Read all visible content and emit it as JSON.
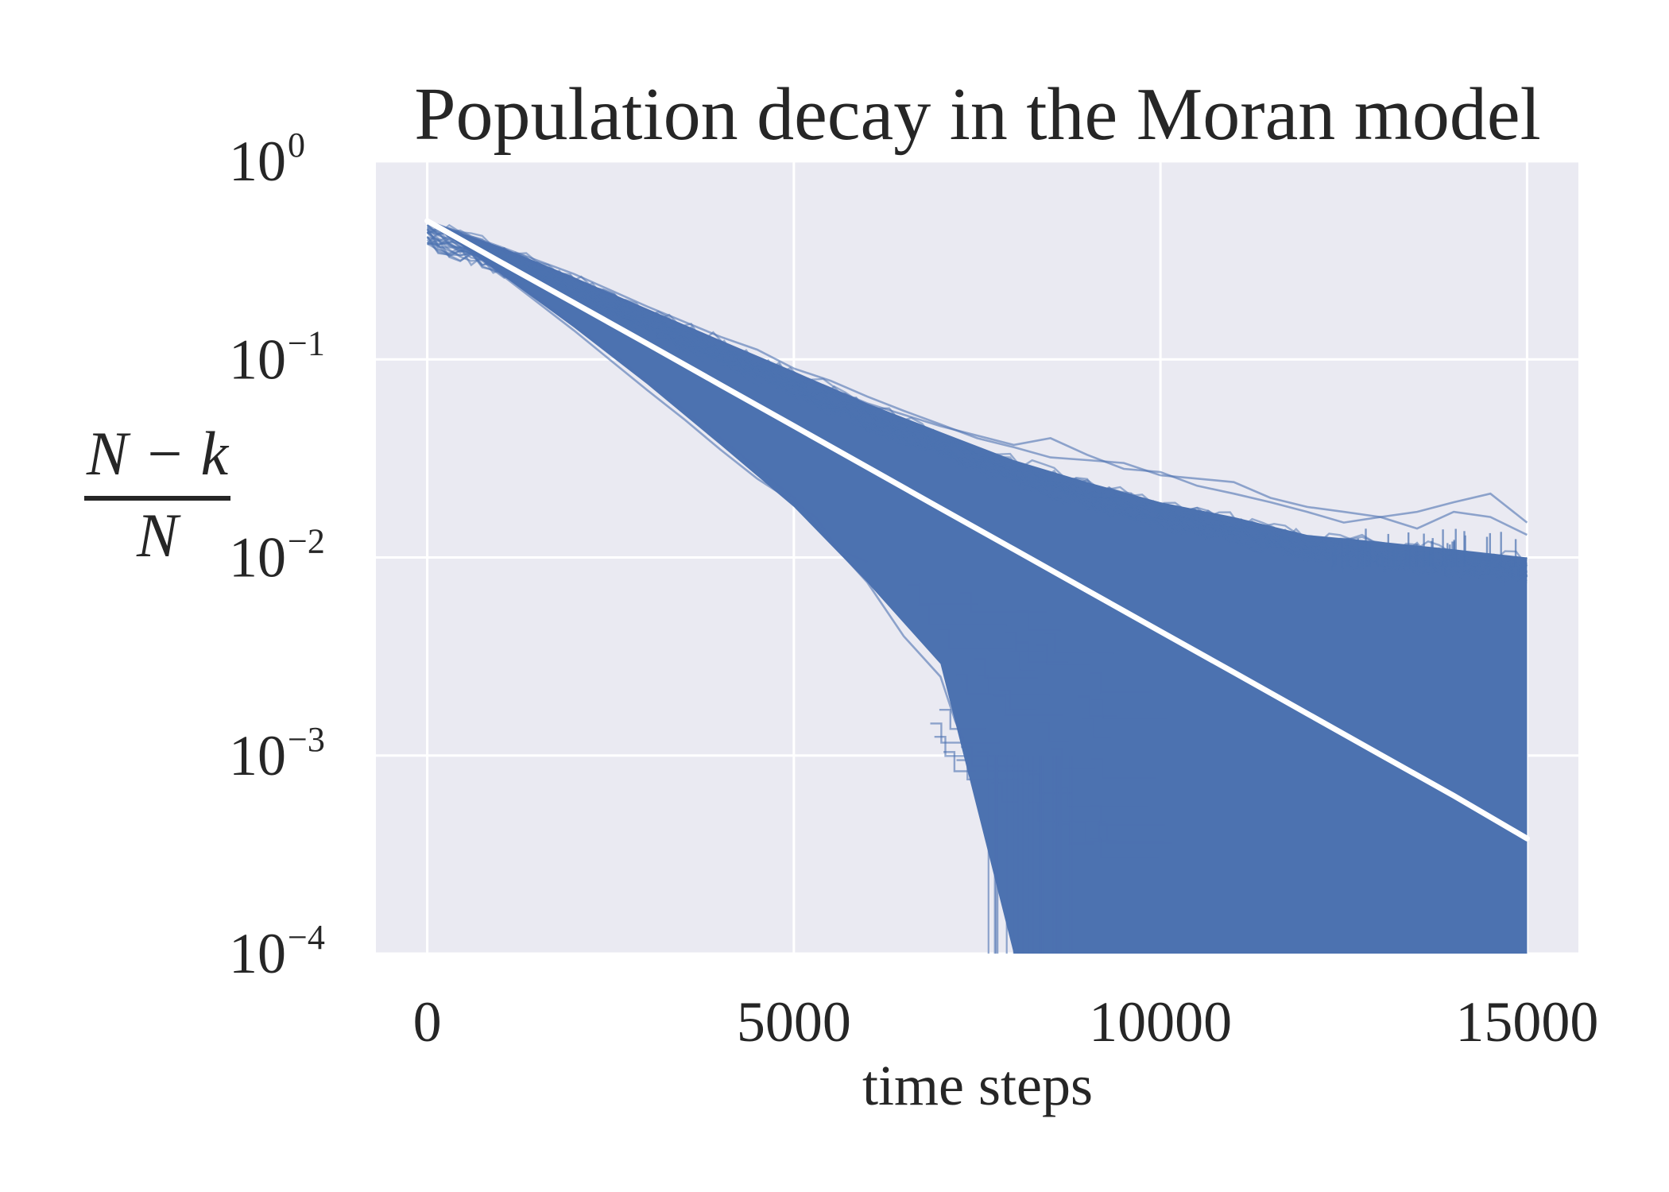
{
  "chart_data": {
    "type": "line",
    "title": "Population decay in the Moran model",
    "xlabel": "time steps",
    "ylabel": {
      "numerator": "N − k",
      "denominator": "N"
    },
    "xlim": [
      -700,
      15700
    ],
    "ylim": [
      0.0001,
      1
    ],
    "yscale": "log",
    "grid": true,
    "colors": {
      "background": "#eaeaf2",
      "grid": "#ffffff",
      "trajectories": "#4c72b0",
      "mean_curve": "#ffffff"
    },
    "x_ticks": [
      {
        "value": 0,
        "label": "0"
      },
      {
        "value": 5000,
        "label": "5000"
      },
      {
        "value": 10000,
        "label": "10000"
      },
      {
        "value": 15000,
        "label": "15000"
      }
    ],
    "y_ticks": [
      {
        "value": 1,
        "base": "10",
        "exp": "0"
      },
      {
        "value": 0.1,
        "base": "10",
        "exp": "−1"
      },
      {
        "value": 0.01,
        "base": "10",
        "exp": "−2"
      },
      {
        "value": 0.001,
        "base": "10",
        "exp": "−3"
      },
      {
        "value": 0.0001,
        "base": "10",
        "exp": "−4"
      }
    ],
    "series": [
      {
        "role": "mean",
        "x": [
          0,
          1000,
          2000,
          3000,
          4000,
          5000,
          6000,
          7000,
          8000,
          9000,
          10000,
          11000,
          12000,
          13000,
          14000,
          15000
        ],
        "y": [
          0.5,
          0.31,
          0.193,
          0.12,
          0.0743,
          0.0461,
          0.0286,
          0.0177,
          0.011,
          0.00682,
          0.00423,
          0.00263,
          0.00163,
          0.00101,
          0.000627,
          0.000381
        ]
      }
    ],
    "envelope": {
      "x": [
        0,
        1000,
        2000,
        3000,
        4000,
        5000,
        6000,
        7000,
        8000,
        9000,
        10000,
        11000,
        12000,
        13000,
        14000,
        15000
      ],
      "upper": [
        0.5,
        0.37,
        0.26,
        0.18,
        0.125,
        0.087,
        0.06,
        0.043,
        0.031,
        0.024,
        0.019,
        0.016,
        0.013,
        0.012,
        0.011,
        0.01
      ],
      "lower": [
        0.5,
        0.27,
        0.145,
        0.075,
        0.037,
        0.018,
        0.0075,
        0.0029,
        0.0001,
        0.0001,
        0.0001,
        0.0001,
        0.0001,
        0.0001,
        0.0001,
        0.0001
      ]
    },
    "outlier_trajectories": [
      {
        "x": [
          0,
          1000,
          2000,
          3000,
          4000,
          4500,
          5000,
          5500,
          6000,
          6500,
          7000,
          7500,
          8000,
          8500,
          9000,
          9500,
          10000,
          10500,
          11000,
          11500,
          12000,
          12500,
          13000,
          13500,
          14000,
          14500,
          15000
        ],
        "y": [
          0.5,
          0.37,
          0.27,
          0.185,
          0.13,
          0.112,
          0.09,
          0.078,
          0.065,
          0.055,
          0.047,
          0.04,
          0.036,
          0.032,
          0.031,
          0.03,
          0.026,
          0.025,
          0.024,
          0.02,
          0.018,
          0.017,
          0.016,
          0.017,
          0.019,
          0.021,
          0.015
        ]
      },
      {
        "x": [
          0,
          1000,
          2000,
          3000,
          4000,
          5000,
          6000,
          7000,
          8000,
          8500,
          9000,
          9500,
          10000,
          10500,
          11000,
          11500,
          12000,
          12500,
          13000,
          13500,
          14000,
          14500,
          15000
        ],
        "y": [
          0.5,
          0.36,
          0.255,
          0.178,
          0.123,
          0.085,
          0.06,
          0.046,
          0.037,
          0.04,
          0.033,
          0.028,
          0.027,
          0.023,
          0.021,
          0.019,
          0.017,
          0.015,
          0.016,
          0.014,
          0.017,
          0.016,
          0.013
        ]
      },
      {
        "x": [
          0,
          1000,
          2000,
          3000,
          3500,
          4000,
          4500,
          5000,
          5300,
          5600,
          6000
        ],
        "y": [
          0.5,
          0.27,
          0.14,
          0.07,
          0.05,
          0.035,
          0.025,
          0.019,
          0.016,
          0.011,
          0.0095
        ]
      },
      {
        "x": [
          0,
          1000,
          2000,
          3000,
          4000,
          5000,
          5500,
          6000,
          6500,
          7000,
          7200,
          7400
        ],
        "y": [
          0.5,
          0.28,
          0.15,
          0.078,
          0.04,
          0.02,
          0.012,
          0.0075,
          0.004,
          0.0025,
          0.0015,
          0.001
        ]
      }
    ]
  }
}
